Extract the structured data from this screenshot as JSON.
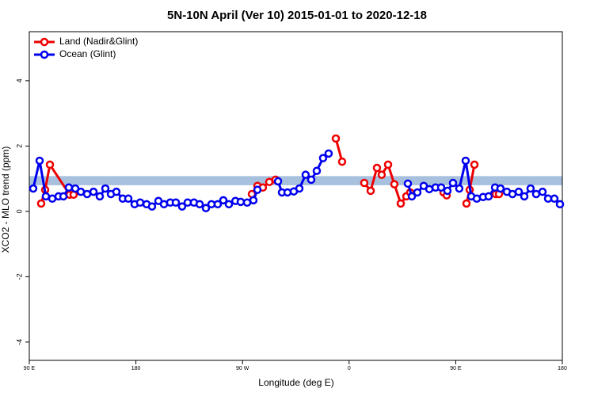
{
  "chart_data": {
    "type": "line",
    "title": "5N-10N April (Ver 10)   2015-01-01 to 2020-12-18",
    "x_label": "Longitude (deg E)",
    "y_label": "XCO2 - MLO trend (ppm)",
    "xlim": [
      90,
      540
    ],
    "xticks": [
      {
        "value": 90,
        "label": "90 E"
      },
      {
        "value": 180,
        "label": "180"
      },
      {
        "value": 270,
        "label": "90 W"
      },
      {
        "value": 360,
        "label": "0"
      },
      {
        "value": 450,
        "label": "90 E"
      },
      {
        "value": 540,
        "label": "180"
      }
    ],
    "ylim": [
      -4.56,
      5.5
    ],
    "yticks": [
      -4,
      -2,
      0,
      2,
      4
    ],
    "band": [
      0.8,
      1.08
    ],
    "band_color": "#a7c0de",
    "legend": "top-left",
    "series": [
      {
        "name": "Land (Nadir&Glint)",
        "color": "#ee0000",
        "x": [
          100,
          103.4,
          107.4,
          124.1,
          127.4,
          null,
          277.9,
          282.6,
          287.2,
          292.6,
          297.9,
          null,
          348.8,
          354.1,
          null,
          372.8,
          378.2,
          383.5,
          387.5,
          392.9,
          398.2,
          403.6,
          408.3,
          411.6,
          null,
          439.7,
          442.4,
          null,
          459.1,
          461.8,
          465.8,
          null,
          483.8,
          486.5
        ],
        "values": [
          0.24,
          0.66,
          1.43,
          0.51,
          0.51,
          null,
          0.53,
          0.78,
          0.73,
          0.9,
          0.97,
          null,
          2.23,
          1.52,
          null,
          0.87,
          0.63,
          1.33,
          1.12,
          1.43,
          0.83,
          0.24,
          0.46,
          0.58,
          null,
          0.58,
          0.49,
          null,
          0.24,
          0.66,
          1.43,
          null,
          0.53,
          0.53
        ]
      },
      {
        "name": "Ocean (Glint)",
        "color": "#0000ee",
        "x": [
          93.3,
          98.7,
          104,
          109.4,
          114.7,
          118.8,
          123.4,
          128.8,
          133.5,
          138.8,
          144.2,
          149.5,
          154.2,
          158.9,
          163.5,
          168.9,
          173.6,
          178.9,
          183.6,
          189,
          193.6,
          199,
          203.7,
          209,
          213.7,
          219,
          223.7,
          229,
          233.8,
          239.1,
          243.8,
          249.1,
          253.8,
          258.5,
          264,
          268.5,
          273.9,
          279.2,
          282.6,
          null,
          300,
          303.3,
          308,
          313.3,
          318,
          323.3,
          328,
          332.7,
          338,
          342.7,
          null,
          409.6,
          413,
          417.6,
          423,
          427.7,
          433,
          437.7,
          443,
          447.7,
          453,
          458.4,
          463.1,
          467.8,
          473.1,
          477.8,
          483.2,
          487.8,
          493.2,
          497.9,
          503.2,
          507.9,
          513.2,
          517.9,
          523.3,
          528,
          533.3,
          538
        ],
        "values": [
          0.7,
          1.55,
          0.46,
          0.39,
          0.46,
          0.46,
          0.73,
          0.7,
          0.6,
          0.53,
          0.6,
          0.46,
          0.7,
          0.53,
          0.6,
          0.39,
          0.39,
          0.22,
          0.27,
          0.22,
          0.15,
          0.32,
          0.22,
          0.27,
          0.27,
          0.15,
          0.27,
          0.27,
          0.22,
          0.1,
          0.22,
          0.22,
          0.34,
          0.22,
          0.32,
          0.29,
          0.27,
          0.34,
          0.66,
          null,
          0.92,
          0.58,
          0.58,
          0.61,
          0.7,
          1.12,
          0.97,
          1.24,
          1.63,
          1.77,
          null,
          0.85,
          0.46,
          0.58,
          0.78,
          0.68,
          0.73,
          0.73,
          0.63,
          0.87,
          0.7,
          1.55,
          0.46,
          0.39,
          0.44,
          0.46,
          0.73,
          0.7,
          0.6,
          0.53,
          0.6,
          0.46,
          0.7,
          0.53,
          0.6,
          0.39,
          0.39,
          0.22
        ]
      }
    ]
  }
}
